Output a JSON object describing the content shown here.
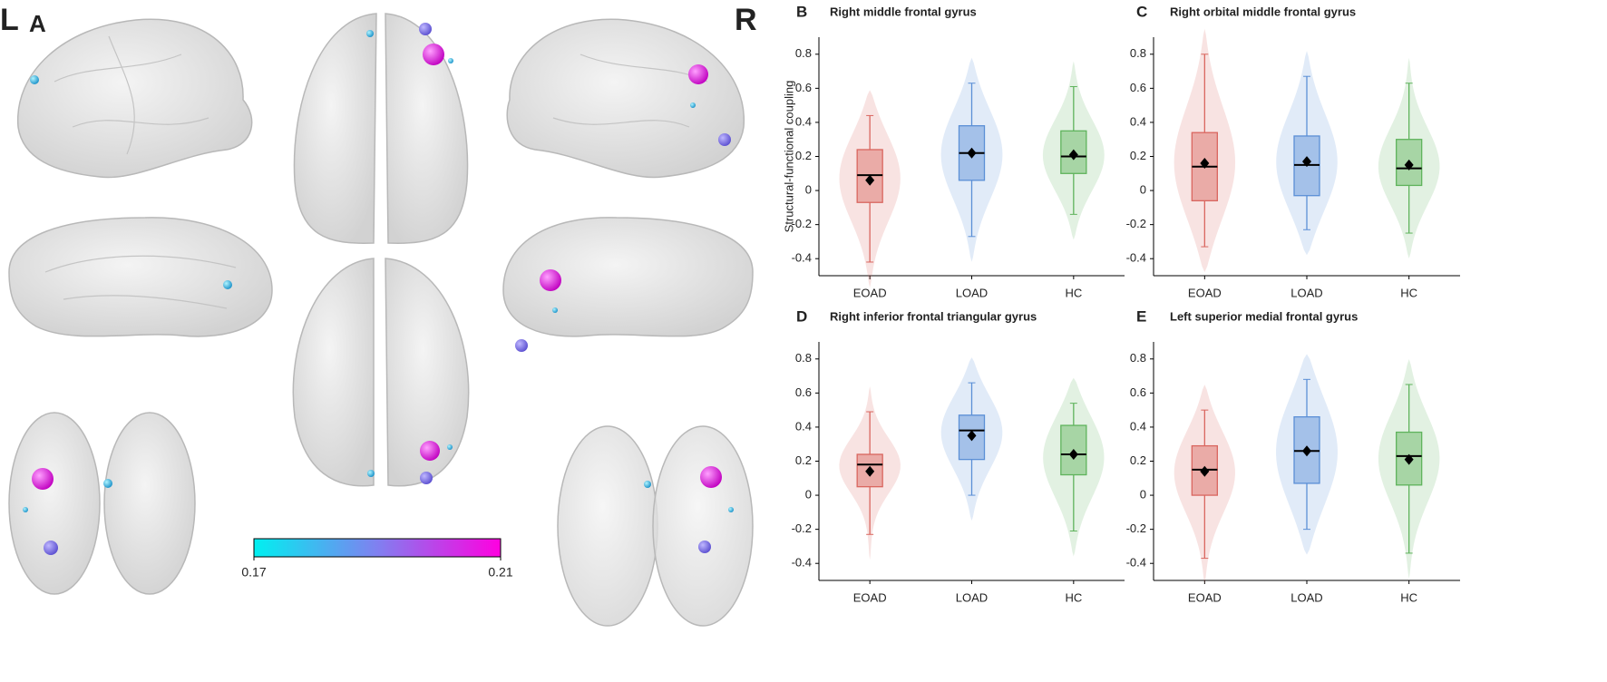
{
  "brain_labels": [
    "L",
    "A",
    "R"
  ],
  "colorbar": {
    "lim": [
      0.17,
      0.21
    ],
    "ticks": [
      0.17,
      0.21
    ],
    "colors": [
      "#00f0f0",
      "#8080f0",
      "#ff00e0"
    ]
  },
  "chart_data": [
    {
      "type": "box",
      "panel": "B",
      "title": "Right middle frontal gyrus",
      "ylabel": "Structural-functional coupling",
      "categories": [
        "EOAD",
        "LOAD",
        "HC"
      ],
      "colors": [
        "#d9665f",
        "#5b8fd6",
        "#5fb35c"
      ],
      "boxes": [
        {
          "min": -0.42,
          "q1": -0.07,
          "median": 0.09,
          "q3": 0.24,
          "max": 0.44,
          "mean": 0.06
        },
        {
          "min": -0.27,
          "q1": 0.06,
          "median": 0.22,
          "q3": 0.38,
          "max": 0.63,
          "mean": 0.22
        },
        {
          "min": -0.14,
          "q1": 0.1,
          "median": 0.2,
          "q3": 0.35,
          "max": 0.61,
          "mean": 0.21
        }
      ],
      "ylim": [
        -0.5,
        0.9
      ],
      "yticks": [
        -0.4,
        -0.2,
        0,
        0.2,
        0.4,
        0.6,
        0.8
      ]
    },
    {
      "type": "box",
      "panel": "C",
      "title": "Right orbital middle frontal gyrus",
      "categories": [
        "EOAD",
        "LOAD",
        "HC"
      ],
      "colors": [
        "#d9665f",
        "#5b8fd6",
        "#5fb35c"
      ],
      "boxes": [
        {
          "min": -0.33,
          "q1": -0.06,
          "median": 0.14,
          "q3": 0.34,
          "max": 0.8,
          "mean": 0.16
        },
        {
          "min": -0.23,
          "q1": -0.03,
          "median": 0.15,
          "q3": 0.32,
          "max": 0.67,
          "mean": 0.17
        },
        {
          "min": -0.25,
          "q1": 0.03,
          "median": 0.13,
          "q3": 0.3,
          "max": 0.63,
          "mean": 0.15
        }
      ],
      "ylim": [
        -0.5,
        0.9
      ],
      "yticks": [
        -0.4,
        -0.2,
        0,
        0.2,
        0.4,
        0.6,
        0.8
      ]
    },
    {
      "type": "box",
      "panel": "D",
      "title": "Right inferior frontal triangular gyrus",
      "categories": [
        "EOAD",
        "LOAD",
        "HC"
      ],
      "colors": [
        "#d9665f",
        "#5b8fd6",
        "#5fb35c"
      ],
      "boxes": [
        {
          "min": -0.23,
          "q1": 0.05,
          "median": 0.18,
          "q3": 0.24,
          "max": 0.49,
          "mean": 0.14
        },
        {
          "min": 0,
          "q1": 0.21,
          "median": 0.38,
          "q3": 0.47,
          "max": 0.66,
          "mean": 0.35
        },
        {
          "min": -0.21,
          "q1": 0.12,
          "median": 0.24,
          "q3": 0.41,
          "max": 0.54,
          "mean": 0.24
        }
      ],
      "ylim": [
        -0.5,
        0.9
      ],
      "yticks": [
        -0.4,
        -0.2,
        0,
        0.2,
        0.4,
        0.6,
        0.8
      ]
    },
    {
      "type": "box",
      "panel": "E",
      "title": "Left superior medial frontal gyrus",
      "categories": [
        "EOAD",
        "LOAD",
        "HC"
      ],
      "colors": [
        "#d9665f",
        "#5b8fd6",
        "#5fb35c"
      ],
      "boxes": [
        {
          "min": -0.37,
          "q1": 0,
          "median": 0.15,
          "q3": 0.29,
          "max": 0.5,
          "mean": 0.14
        },
        {
          "min": -0.2,
          "q1": 0.07,
          "median": 0.26,
          "q3": 0.46,
          "max": 0.68,
          "mean": 0.26
        },
        {
          "min": -0.34,
          "q1": 0.06,
          "median": 0.23,
          "q3": 0.37,
          "max": 0.65,
          "mean": 0.21
        }
      ],
      "ylim": [
        -0.5,
        0.9
      ],
      "yticks": [
        -0.4,
        -0.2,
        0,
        0.2,
        0.4,
        0.6,
        0.8
      ]
    }
  ]
}
